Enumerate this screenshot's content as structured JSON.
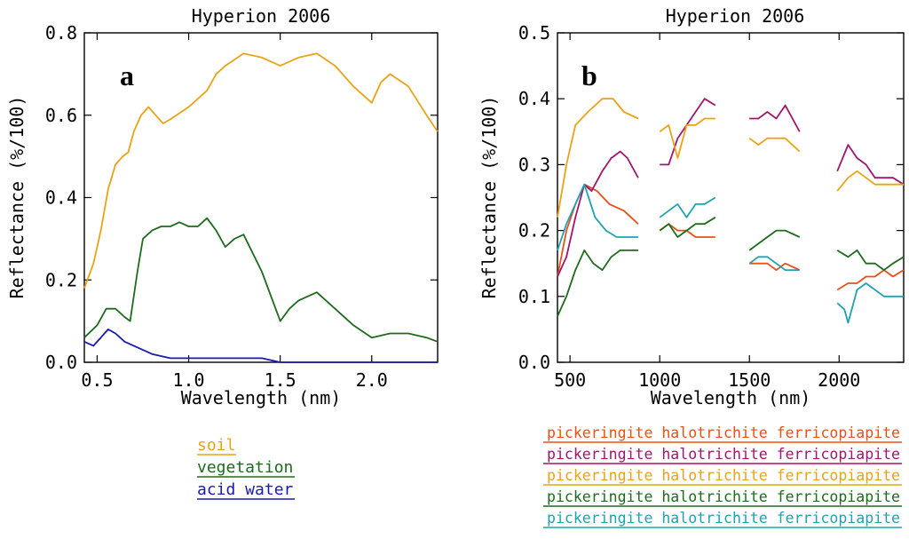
{
  "colors": {
    "soil": "#E8A317",
    "vegetation": "#1E6B1E",
    "acid_water": "#1A1AB0",
    "orange_red": "#E8501A",
    "magenta": "#A0166E",
    "gold": "#E8A317",
    "green": "#1E6B1E",
    "teal": "#1FA3B0"
  },
  "chart_data": [
    {
      "type": "line",
      "panel_label": "a",
      "title": "Hyperion 2006",
      "xlabel": "Wavelength (nm)",
      "ylabel": "Reflectance (%/100)",
      "xlim": [
        0.43,
        2.36
      ],
      "ylim": [
        0.0,
        0.8
      ],
      "xticks": [
        0.5,
        1.0,
        1.5,
        2.0
      ],
      "xtick_labels": [
        "0.5",
        "1.0",
        "1.5",
        "2.0"
      ],
      "yticks": [
        0.0,
        0.2,
        0.4,
        0.6,
        0.8
      ],
      "ytick_labels": [
        "0.0",
        "0.2",
        "0.4",
        "0.6",
        "0.8"
      ],
      "legend": [
        "soil",
        "vegetation",
        "acid water"
      ],
      "series": [
        {
          "name": "soil",
          "color_key": "soil",
          "x": [
            0.43,
            0.48,
            0.52,
            0.56,
            0.6,
            0.64,
            0.67,
            0.7,
            0.74,
            0.78,
            0.82,
            0.86,
            0.9,
            1.0,
            1.1,
            1.15,
            1.2,
            1.3,
            1.4,
            1.5,
            1.6,
            1.7,
            1.8,
            1.9,
            2.0,
            2.05,
            2.1,
            2.2,
            2.3,
            2.36
          ],
          "y": [
            0.18,
            0.24,
            0.32,
            0.42,
            0.48,
            0.5,
            0.51,
            0.56,
            0.6,
            0.62,
            0.6,
            0.58,
            0.59,
            0.62,
            0.66,
            0.7,
            0.72,
            0.75,
            0.74,
            0.72,
            0.74,
            0.75,
            0.72,
            0.67,
            0.63,
            0.68,
            0.7,
            0.67,
            0.6,
            0.56
          ]
        },
        {
          "name": "vegetation",
          "color_key": "vegetation",
          "x": [
            0.43,
            0.5,
            0.55,
            0.6,
            0.65,
            0.68,
            0.72,
            0.75,
            0.8,
            0.85,
            0.9,
            0.95,
            1.0,
            1.05,
            1.1,
            1.15,
            1.2,
            1.25,
            1.3,
            1.4,
            1.5,
            1.55,
            1.6,
            1.7,
            1.8,
            1.9,
            2.0,
            2.1,
            2.2,
            2.3,
            2.36
          ],
          "y": [
            0.06,
            0.09,
            0.13,
            0.13,
            0.11,
            0.1,
            0.22,
            0.3,
            0.32,
            0.33,
            0.33,
            0.34,
            0.33,
            0.33,
            0.35,
            0.32,
            0.28,
            0.3,
            0.31,
            0.22,
            0.1,
            0.13,
            0.15,
            0.17,
            0.13,
            0.09,
            0.06,
            0.07,
            0.07,
            0.06,
            0.05
          ]
        },
        {
          "name": "acid water",
          "color_key": "acid_water",
          "x": [
            0.43,
            0.48,
            0.52,
            0.56,
            0.6,
            0.65,
            0.7,
            0.75,
            0.8,
            0.9,
            1.0,
            1.1,
            1.2,
            1.3,
            1.4,
            1.5,
            1.6,
            1.8,
            2.0,
            2.2,
            2.36
          ],
          "y": [
            0.05,
            0.04,
            0.06,
            0.08,
            0.07,
            0.05,
            0.04,
            0.03,
            0.02,
            0.01,
            0.01,
            0.01,
            0.01,
            0.01,
            0.01,
            0.0,
            0.0,
            0.0,
            0.0,
            0.0,
            0.0
          ]
        }
      ]
    },
    {
      "type": "line",
      "panel_label": "b",
      "title": "Hyperion 2006",
      "xlabel": "Wavelength (nm)",
      "ylabel": "Reflectance (%/100)",
      "xlim": [
        430,
        2360
      ],
      "ylim": [
        0.0,
        0.5
      ],
      "xticks": [
        500,
        1000,
        1500,
        2000
      ],
      "xtick_labels": [
        "500",
        "1000",
        "1500",
        "2000"
      ],
      "yticks": [
        0.0,
        0.1,
        0.2,
        0.3,
        0.4,
        0.5
      ],
      "ytick_labels": [
        "0.0",
        "0.1",
        "0.2",
        "0.3",
        "0.4",
        "0.5"
      ],
      "legend": [
        "pickeringite halotrichite ferricopiapite",
        "pickeringite halotrichite ferricopiapite",
        "pickeringite halotrichite ferricopiapite",
        "pickeringite halotrichite ferricopiapite",
        "pickeringite halotrichite ferricopiapite"
      ],
      "series": [
        {
          "name": "orange-red",
          "color_key": "orange_red",
          "segments": [
            {
              "x": [
                430,
                480,
                530,
                580,
                650,
                720,
                800,
                880
              ],
              "y": [
                0.13,
                0.2,
                0.24,
                0.27,
                0.26,
                0.24,
                0.23,
                0.21
              ]
            },
            {
              "x": [
                1000,
                1050,
                1100,
                1150,
                1200,
                1250,
                1310
              ],
              "y": [
                0.2,
                0.21,
                0.2,
                0.2,
                0.19,
                0.19,
                0.19
              ]
            },
            {
              "x": [
                1500,
                1550,
                1600,
                1650,
                1700,
                1780
              ],
              "y": [
                0.15,
                0.15,
                0.15,
                0.14,
                0.15,
                0.14
              ]
            },
            {
              "x": [
                1990,
                2050,
                2100,
                2150,
                2200,
                2250,
                2300,
                2360
              ],
              "y": [
                0.11,
                0.12,
                0.12,
                0.13,
                0.13,
                0.14,
                0.13,
                0.14
              ]
            }
          ]
        },
        {
          "name": "magenta",
          "color_key": "magenta",
          "segments": [
            {
              "x": [
                430,
                480,
                530,
                580,
                620,
                680,
                730,
                780,
                820,
                880
              ],
              "y": [
                0.13,
                0.16,
                0.22,
                0.27,
                0.26,
                0.29,
                0.31,
                0.32,
                0.31,
                0.28
              ]
            },
            {
              "x": [
                1000,
                1050,
                1100,
                1150,
                1200,
                1250,
                1310
              ],
              "y": [
                0.3,
                0.3,
                0.34,
                0.36,
                0.38,
                0.4,
                0.39
              ]
            },
            {
              "x": [
                1500,
                1550,
                1600,
                1650,
                1700,
                1780
              ],
              "y": [
                0.37,
                0.37,
                0.38,
                0.37,
                0.39,
                0.35
              ]
            },
            {
              "x": [
                1990,
                2050,
                2100,
                2150,
                2200,
                2250,
                2300,
                2360
              ],
              "y": [
                0.29,
                0.33,
                0.31,
                0.3,
                0.28,
                0.28,
                0.28,
                0.27
              ]
            }
          ]
        },
        {
          "name": "gold",
          "color_key": "gold",
          "segments": [
            {
              "x": [
                430,
                480,
                530,
                600,
                680,
                740,
                800,
                880
              ],
              "y": [
                0.22,
                0.3,
                0.36,
                0.38,
                0.4,
                0.4,
                0.38,
                0.37
              ]
            },
            {
              "x": [
                1000,
                1050,
                1100,
                1150,
                1200,
                1250,
                1310
              ],
              "y": [
                0.35,
                0.36,
                0.31,
                0.36,
                0.36,
                0.37,
                0.37
              ]
            },
            {
              "x": [
                1500,
                1550,
                1600,
                1650,
                1700,
                1780
              ],
              "y": [
                0.34,
                0.33,
                0.34,
                0.34,
                0.34,
                0.32
              ]
            },
            {
              "x": [
                1990,
                2050,
                2100,
                2150,
                2200,
                2250,
                2300,
                2360
              ],
              "y": [
                0.26,
                0.28,
                0.29,
                0.28,
                0.27,
                0.27,
                0.27,
                0.27
              ]
            }
          ]
        },
        {
          "name": "green",
          "color_key": "green",
          "segments": [
            {
              "x": [
                430,
                480,
                530,
                580,
                630,
                680,
                730,
                780,
                830,
                880
              ],
              "y": [
                0.07,
                0.1,
                0.14,
                0.17,
                0.15,
                0.14,
                0.16,
                0.17,
                0.17,
                0.17
              ]
            },
            {
              "x": [
                1000,
                1050,
                1100,
                1150,
                1200,
                1250,
                1310
              ],
              "y": [
                0.2,
                0.21,
                0.19,
                0.2,
                0.21,
                0.21,
                0.22
              ]
            },
            {
              "x": [
                1500,
                1550,
                1600,
                1650,
                1700,
                1780
              ],
              "y": [
                0.17,
                0.18,
                0.19,
                0.2,
                0.2,
                0.19
              ]
            },
            {
              "x": [
                1990,
                2050,
                2100,
                2150,
                2200,
                2250,
                2300,
                2360
              ],
              "y": [
                0.17,
                0.16,
                0.17,
                0.15,
                0.15,
                0.14,
                0.15,
                0.16
              ]
            }
          ]
        },
        {
          "name": "teal",
          "color_key": "teal",
          "segments": [
            {
              "x": [
                430,
                480,
                530,
                580,
                640,
                700,
                760,
                820,
                880
              ],
              "y": [
                0.17,
                0.21,
                0.24,
                0.27,
                0.22,
                0.2,
                0.19,
                0.19,
                0.19
              ]
            },
            {
              "x": [
                1000,
                1050,
                1100,
                1150,
                1200,
                1250,
                1310
              ],
              "y": [
                0.22,
                0.23,
                0.24,
                0.22,
                0.24,
                0.24,
                0.25
              ]
            },
            {
              "x": [
                1500,
                1550,
                1600,
                1650,
                1700,
                1780
              ],
              "y": [
                0.15,
                0.16,
                0.16,
                0.15,
                0.14,
                0.14
              ]
            },
            {
              "x": [
                1990,
                2030,
                2050,
                2100,
                2150,
                2200,
                2250,
                2300,
                2360
              ],
              "y": [
                0.09,
                0.08,
                0.06,
                0.11,
                0.12,
                0.11,
                0.1,
                0.1,
                0.1
              ]
            }
          ]
        }
      ]
    }
  ]
}
